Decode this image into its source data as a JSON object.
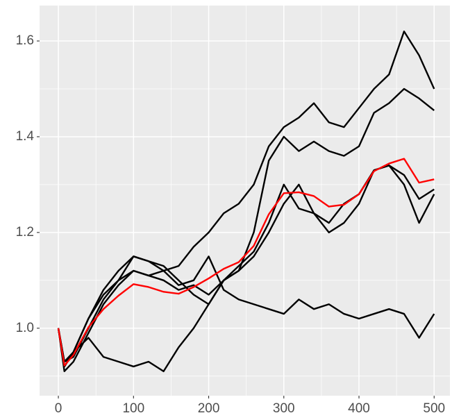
{
  "chart_data": {
    "type": "line",
    "x": [
      0,
      8,
      20,
      40,
      60,
      80,
      100,
      120,
      140,
      160,
      180,
      200,
      220,
      240,
      260,
      280,
      300,
      320,
      340,
      360,
      380,
      400,
      420,
      440,
      460,
      480,
      500
    ],
    "series": [
      {
        "color": "#000000",
        "values": [
          1.0,
          0.92,
          0.95,
          1.02,
          1.07,
          1.1,
          1.15,
          1.14,
          1.12,
          1.13,
          1.17,
          1.2,
          1.24,
          1.26,
          1.3,
          1.38,
          1.42,
          1.44,
          1.47,
          1.43,
          1.42,
          1.46,
          1.5,
          1.53,
          1.62,
          1.57,
          1.5
        ]
      },
      {
        "color": "#000000",
        "values": [
          1.0,
          0.93,
          0.94,
          1.0,
          1.06,
          1.1,
          1.12,
          1.11,
          1.1,
          1.08,
          1.09,
          1.07,
          1.1,
          1.12,
          1.2,
          1.35,
          1.4,
          1.37,
          1.39,
          1.37,
          1.36,
          1.38,
          1.45,
          1.47,
          1.5,
          1.48,
          1.455
        ]
      },
      {
        "color": "#000000",
        "values": [
          1.0,
          0.92,
          0.95,
          1.02,
          1.08,
          1.12,
          1.15,
          1.14,
          1.13,
          1.1,
          1.07,
          1.05,
          1.1,
          1.12,
          1.15,
          1.2,
          1.26,
          1.3,
          1.24,
          1.22,
          1.26,
          1.28,
          1.33,
          1.34,
          1.32,
          1.27,
          1.29
        ]
      },
      {
        "color": "#000000",
        "values": [
          1.0,
          0.91,
          0.93,
          0.99,
          1.05,
          1.09,
          1.12,
          1.11,
          1.12,
          1.09,
          1.1,
          1.15,
          1.08,
          1.06,
          1.05,
          1.04,
          1.03,
          1.06,
          1.04,
          1.05,
          1.03,
          1.02,
          1.03,
          1.04,
          1.03,
          0.98,
          1.03
        ]
      },
      {
        "color": "#000000",
        "values": [
          1.0,
          0.93,
          0.95,
          0.98,
          0.94,
          0.93,
          0.92,
          0.93,
          0.91,
          0.96,
          1.0,
          1.05,
          1.1,
          1.13,
          1.16,
          1.22,
          1.3,
          1.25,
          1.24,
          1.2,
          1.22,
          1.26,
          1.33,
          1.34,
          1.3,
          1.22,
          1.28
        ]
      },
      {
        "color": "#ff0000",
        "values": [
          1.0,
          0.922,
          0.944,
          1.002,
          1.04,
          1.068,
          1.092,
          1.086,
          1.076,
          1.072,
          1.086,
          1.104,
          1.124,
          1.138,
          1.172,
          1.238,
          1.282,
          1.284,
          1.276,
          1.254,
          1.258,
          1.28,
          1.328,
          1.344,
          1.354,
          1.304,
          1.311
        ]
      }
    ],
    "xlim": [
      -25,
      521
    ],
    "xticks": [
      0,
      100,
      200,
      300,
      400,
      500
    ],
    "ylim": [
      0.859,
      1.674
    ],
    "yticks": [
      {
        "value": 1,
        "label": "1.0"
      },
      1.2,
      1.4,
      1.6
    ],
    "grid": true
  }
}
